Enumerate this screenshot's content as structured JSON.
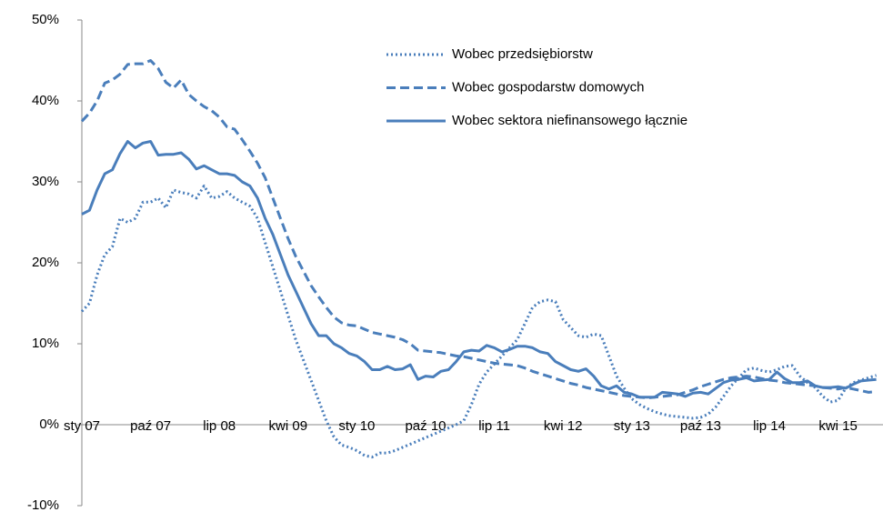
{
  "chart_data": {
    "type": "line",
    "categories": [
      "sty 07",
      null,
      null,
      null,
      null,
      null,
      null,
      null,
      null,
      "paź 07",
      null,
      null,
      null,
      null,
      null,
      null,
      null,
      null,
      "lip 08",
      null,
      null,
      null,
      null,
      null,
      null,
      null,
      null,
      "kwi 09",
      null,
      null,
      null,
      null,
      null,
      null,
      null,
      null,
      "sty 10",
      null,
      null,
      null,
      null,
      null,
      null,
      null,
      null,
      "paź 10",
      null,
      null,
      null,
      null,
      null,
      null,
      null,
      null,
      "lip 11",
      null,
      null,
      null,
      null,
      null,
      null,
      null,
      null,
      "kwi 12",
      null,
      null,
      null,
      null,
      null,
      null,
      null,
      null,
      "sty 13",
      null,
      null,
      null,
      null,
      null,
      null,
      null,
      null,
      "paź 13",
      null,
      null,
      null,
      null,
      null,
      null,
      null,
      null,
      "lip 14",
      null,
      null,
      null,
      null,
      null,
      null,
      null,
      null,
      "kwi 15",
      null,
      null,
      null,
      null,
      null
    ],
    "series": [
      {
        "name": "Wobec przedsiębiorstw",
        "color": "#4a7ebb",
        "style": "dotted",
        "values": [
          14,
          15,
          18.5,
          21,
          22,
          25.5,
          25,
          25.5,
          27.5,
          27.5,
          28,
          26.8,
          29,
          28.7,
          28.5,
          28,
          29.5,
          28,
          28.2,
          28.8,
          28,
          27.5,
          27,
          25.5,
          22.5,
          19.5,
          16.5,
          13.5,
          10.5,
          8,
          5.5,
          3,
          0.5,
          -1.5,
          -2.5,
          -2.8,
          -3.2,
          -3.8,
          -4,
          -3.5,
          -3.5,
          -3.2,
          -2.8,
          -2.4,
          -2,
          -1.6,
          -1.2,
          -0.8,
          -0.4,
          0,
          0.5,
          2.5,
          5,
          6.5,
          7.5,
          8.5,
          9.5,
          10.5,
          12.5,
          14.5,
          15.2,
          15.4,
          15.2,
          13,
          12,
          11,
          10.8,
          11.2,
          11,
          8.5,
          6,
          4.5,
          3.2,
          2.5,
          2,
          1.6,
          1.3,
          1.1,
          1,
          0.9,
          0.8,
          0.9,
          1.3,
          2.2,
          3.5,
          4.8,
          5.8,
          6.8,
          7,
          6.7,
          6.5,
          6.8,
          7.2,
          7.3,
          6,
          5.2,
          4.6,
          3.5,
          2.8,
          3,
          4.5,
          5.2,
          5.5,
          5.8,
          6.1
        ]
      },
      {
        "name": "Wobec gospodarstw domowych",
        "color": "#4a7ebb",
        "style": "dashed",
        "values": [
          37.5,
          38.5,
          40,
          42.2,
          42.6,
          43.3,
          44.5,
          44.6,
          44.6,
          45,
          44,
          42.3,
          41.6,
          42.6,
          40.8,
          40,
          39.3,
          38.8,
          38,
          36.8,
          36.5,
          35.2,
          33.8,
          32.3,
          30.5,
          28,
          25.5,
          23,
          20.8,
          19,
          17.2,
          15.8,
          14.5,
          13.3,
          12.6,
          12.3,
          12.2,
          11.8,
          11.4,
          11.2,
          11,
          10.8,
          10.5,
          10,
          9.2,
          9.1,
          9,
          8.9,
          8.7,
          8.5,
          8.4,
          8.2,
          8,
          7.8,
          7.6,
          7.5,
          7.4,
          7.3,
          7,
          6.6,
          6.3,
          6,
          5.7,
          5.4,
          5.1,
          4.9,
          4.6,
          4.4,
          4.2,
          4,
          3.8,
          3.6,
          3.5,
          3.4,
          3.3,
          3.4,
          3.5,
          3.6,
          3.7,
          4,
          4.3,
          4.7,
          5,
          5.3,
          5.6,
          5.8,
          5.9,
          6,
          5.9,
          5.7,
          5.5,
          5.4,
          5.2,
          5.1,
          5,
          4.9,
          4.8,
          4.6,
          4.5,
          4.4,
          4.6,
          4.4,
          4.2,
          4,
          4.1
        ]
      },
      {
        "name": "Wobec sektora niefinansowego łącznie",
        "color": "#4a7ebb",
        "style": "solid",
        "values": [
          26,
          26.5,
          29,
          31,
          31.5,
          33.5,
          35,
          34.2,
          34.8,
          35,
          33.3,
          33.4,
          33.4,
          33.6,
          32.8,
          31.6,
          32,
          31.5,
          31,
          31,
          30.8,
          30,
          29.5,
          28,
          25.5,
          23.5,
          21,
          18.5,
          16.5,
          14.5,
          12.5,
          11,
          11,
          10,
          9.5,
          8.8,
          8.5,
          7.8,
          6.8,
          6.8,
          7.2,
          6.8,
          6.9,
          7.4,
          5.6,
          6,
          5.9,
          6.6,
          6.8,
          7.8,
          9,
          9.2,
          9.1,
          9.8,
          9.5,
          9,
          9.3,
          9.7,
          9.7,
          9.5,
          9,
          8.8,
          7.8,
          7.3,
          6.8,
          6.6,
          6.9,
          6,
          4.8,
          4.4,
          4.8,
          4,
          3.8,
          3.4,
          3.4,
          3.4,
          4,
          3.9,
          3.8,
          3.5,
          3.9,
          4,
          3.8,
          4.5,
          5.2,
          5.5,
          5.6,
          5.8,
          5.4,
          5.5,
          5.6,
          6.5,
          5.7,
          5.2,
          5.2,
          5.4,
          4.8,
          4.6,
          4.6,
          4.7,
          4.5,
          5,
          5.4,
          5.5,
          5.6
        ]
      }
    ],
    "ylim": [
      -10,
      50
    ],
    "yticks": [
      {
        "value": -10,
        "label": "-10%"
      },
      {
        "value": 0,
        "label": "0%"
      },
      {
        "value": 10,
        "label": "10%"
      },
      {
        "value": 20,
        "label": "20%"
      },
      {
        "value": 30,
        "label": "30%"
      },
      {
        "value": 40,
        "label": "40%"
      },
      {
        "value": 50,
        "label": "50%"
      }
    ],
    "grid": false,
    "legend": "upper right"
  }
}
